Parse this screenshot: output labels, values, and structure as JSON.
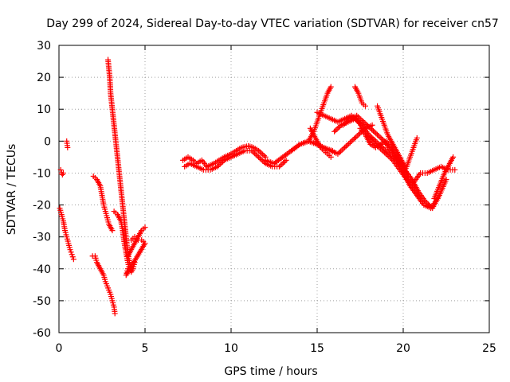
{
  "chart_data": {
    "type": "scatter",
    "title": "Day 299 of 2024, Sidereal Day-to-day VTEC variation (SDTVAR) for receiver cn57",
    "xlabel": "GPS time / hours",
    "ylabel": "SDTVAR / TECUs",
    "xlim": [
      0,
      25
    ],
    "ylim": [
      -60,
      30
    ],
    "xticks": [
      0,
      5,
      10,
      15,
      20,
      25
    ],
    "yticks": [
      -60,
      -50,
      -40,
      -30,
      -20,
      -10,
      0,
      10,
      20,
      30
    ],
    "grid": true,
    "marker": "+",
    "color": "#ff0000",
    "series": [
      {
        "name": "s1",
        "x": [
          0.1,
          0.15,
          0.2,
          0.25
        ],
        "y": [
          -9,
          -10,
          -10.5,
          -10
        ]
      },
      {
        "name": "s2",
        "x": [
          0.45,
          0.5
        ],
        "y": [
          0,
          -2
        ]
      },
      {
        "name": "s3",
        "x": [
          0.05,
          0.15,
          0.25,
          0.35,
          0.45,
          0.55,
          0.65,
          0.75,
          0.85
        ],
        "y": [
          -21,
          -23,
          -25,
          -28,
          -30,
          -32,
          -34,
          -35.5,
          -37
        ]
      },
      {
        "name": "s4",
        "x": [
          2.0,
          2.2,
          2.4,
          2.5,
          2.6,
          2.7,
          2.8,
          2.9,
          3.0,
          3.1
        ],
        "y": [
          -11,
          -12,
          -14,
          -17,
          -20,
          -22,
          -24,
          -26,
          -27,
          -28
        ]
      },
      {
        "name": "s5",
        "x": [
          1.95,
          2.1,
          2.2,
          2.4,
          2.6,
          2.7,
          2.85,
          3.0,
          3.1,
          3.2,
          3.25
        ],
        "y": [
          -36,
          -36,
          -38,
          -40,
          -42,
          -44,
          -46,
          -48,
          -50,
          -52,
          -54
        ]
      },
      {
        "name": "s6",
        "x": [
          2.85,
          2.95,
          3.0,
          3.1,
          3.2,
          3.3,
          3.4,
          3.5,
          3.6,
          3.7,
          3.8,
          3.9,
          4.0,
          4.1,
          4.2
        ],
        "y": [
          25.5,
          20,
          15,
          10,
          5,
          0,
          -5,
          -10,
          -15,
          -20,
          -25,
          -30,
          -35,
          -38,
          -40
        ]
      },
      {
        "name": "s7",
        "x": [
          3.2,
          3.4,
          3.6,
          3.7,
          3.8,
          3.9,
          4.0,
          4.1,
          4.2,
          4.3,
          4.4
        ],
        "y": [
          -22,
          -23,
          -25,
          -28,
          -32,
          -35,
          -38,
          -40,
          -41,
          -40,
          -38
        ]
      },
      {
        "name": "s8",
        "x": [
          4.0,
          4.2,
          4.4,
          4.6,
          4.8,
          5.0
        ],
        "y": [
          -36,
          -34,
          -32,
          -30,
          -28,
          -27
        ]
      },
      {
        "name": "s9",
        "x": [
          4.2,
          4.4,
          4.6,
          4.8,
          5.0,
          3.9,
          4.0
        ],
        "y": [
          -31,
          -30,
          -31,
          -31,
          -32,
          -42,
          -40
        ]
      },
      {
        "name": "s10",
        "x": [
          7.2,
          7.5,
          7.8,
          8.0,
          8.3,
          8.6,
          9.0,
          9.3,
          9.6,
          10.0,
          10.3,
          10.6,
          11.0,
          11.3,
          11.6,
          12.0
        ],
        "y": [
          -6,
          -5,
          -6,
          -7,
          -6,
          -8,
          -7,
          -6,
          -5,
          -4,
          -3,
          -2,
          -1.5,
          -2,
          -3,
          -5
        ]
      },
      {
        "name": "s11",
        "x": [
          7.3,
          7.6,
          8.0,
          8.4,
          8.8,
          9.2,
          9.6,
          10.0,
          10.4,
          10.8,
          11.2,
          11.6,
          12.0,
          12.4,
          12.8,
          13.2
        ],
        "y": [
          -8,
          -7,
          -8,
          -9,
          -9,
          -8,
          -6,
          -5,
          -4,
          -3,
          -3,
          -5,
          -7,
          -8,
          -8,
          -6
        ]
      },
      {
        "name": "s12",
        "x": [
          12.0,
          12.5,
          13.0,
          13.5,
          14.0,
          14.5,
          15.0,
          15.3,
          15.6,
          15.9
        ],
        "y": [
          -6,
          -7,
          -5,
          -3,
          -1,
          0,
          -1,
          -2,
          -2.5,
          -3
        ]
      },
      {
        "name": "s13",
        "x": [
          13.5,
          14.0,
          14.5,
          15.0,
          15.4,
          15.8,
          16.2,
          16.6,
          17.0,
          17.4,
          17.8,
          18.2
        ],
        "y": [
          -3,
          -1,
          0,
          -1,
          -2,
          -3,
          -4,
          -2,
          0,
          2,
          4,
          5
        ]
      },
      {
        "name": "s14",
        "x": [
          14.5,
          14.8,
          15.0,
          15.2,
          15.4,
          15.6,
          15.8
        ],
        "y": [
          0,
          3,
          6,
          9,
          12,
          15,
          17
        ]
      },
      {
        "name": "s15",
        "x": [
          14.6,
          14.8,
          15.0,
          15.2,
          15.4,
          15.6,
          15.8
        ],
        "y": [
          4,
          2,
          0,
          -2,
          -3,
          -4,
          -5
        ]
      },
      {
        "name": "s16",
        "x": [
          15.0,
          15.4,
          15.8,
          16.2,
          16.6,
          17.0,
          17.4,
          17.8,
          18.2,
          18.6,
          19.0,
          19.4,
          19.8,
          20.2,
          20.6,
          21.0
        ],
        "y": [
          9,
          8,
          7,
          6,
          7,
          8,
          6,
          3,
          0,
          -2,
          -4,
          -6,
          -9,
          -12,
          -15,
          -18
        ]
      },
      {
        "name": "s17",
        "x": [
          16.0,
          16.4,
          16.8,
          17.2,
          17.6,
          18.0,
          18.4,
          18.8,
          19.2,
          19.6,
          20.0,
          20.4,
          20.8,
          21.2,
          21.6,
          22.0
        ],
        "y": [
          3,
          5,
          6,
          7,
          5,
          2,
          0,
          -2,
          -4,
          -6,
          -10,
          -14,
          -17,
          -20,
          -21,
          -18
        ]
      },
      {
        "name": "s18",
        "x": [
          16.5,
          16.9,
          17.3,
          17.7,
          18.1,
          18.5,
          18.9,
          19.3,
          19.7,
          20.1,
          20.5,
          20.9,
          21.3,
          21.7,
          22.1,
          22.5
        ],
        "y": [
          5,
          7,
          8,
          6,
          4,
          2,
          0,
          -3,
          -6,
          -9,
          -12,
          -16,
          -19,
          -21,
          -17,
          -12
        ]
      },
      {
        "name": "s19",
        "x": [
          17.2,
          17.4,
          17.6,
          17.8
        ],
        "y": [
          17,
          15,
          12,
          11
        ]
      },
      {
        "name": "s20",
        "x": [
          17.5,
          17.8,
          18.1,
          18.4,
          18.7,
          19.0,
          19.3,
          19.6,
          20.0,
          20.3,
          20.6,
          21.0,
          21.4,
          21.8,
          22.2,
          22.6,
          23.0
        ],
        "y": [
          4,
          2,
          -1,
          -2,
          -1,
          0,
          -2,
          -5,
          -8,
          -11,
          -13,
          -10,
          -10,
          -9,
          -8,
          -9,
          -9
        ]
      },
      {
        "name": "s21",
        "x": [
          18.5,
          18.7,
          18.9,
          19.1,
          19.3,
          19.5,
          19.7,
          19.9,
          20.1
        ],
        "y": [
          11,
          8,
          5,
          2,
          0,
          -2,
          -4,
          -6,
          -8
        ]
      },
      {
        "name": "s22",
        "x": [
          20.0,
          20.2,
          20.4,
          20.6,
          20.8
        ],
        "y": [
          -10,
          -8,
          -5,
          -2,
          1
        ]
      },
      {
        "name": "s23",
        "x": [
          21.8,
          22.1,
          22.4,
          22.7,
          22.9
        ],
        "y": [
          -18,
          -14,
          -10,
          -7,
          -5
        ]
      }
    ]
  }
}
